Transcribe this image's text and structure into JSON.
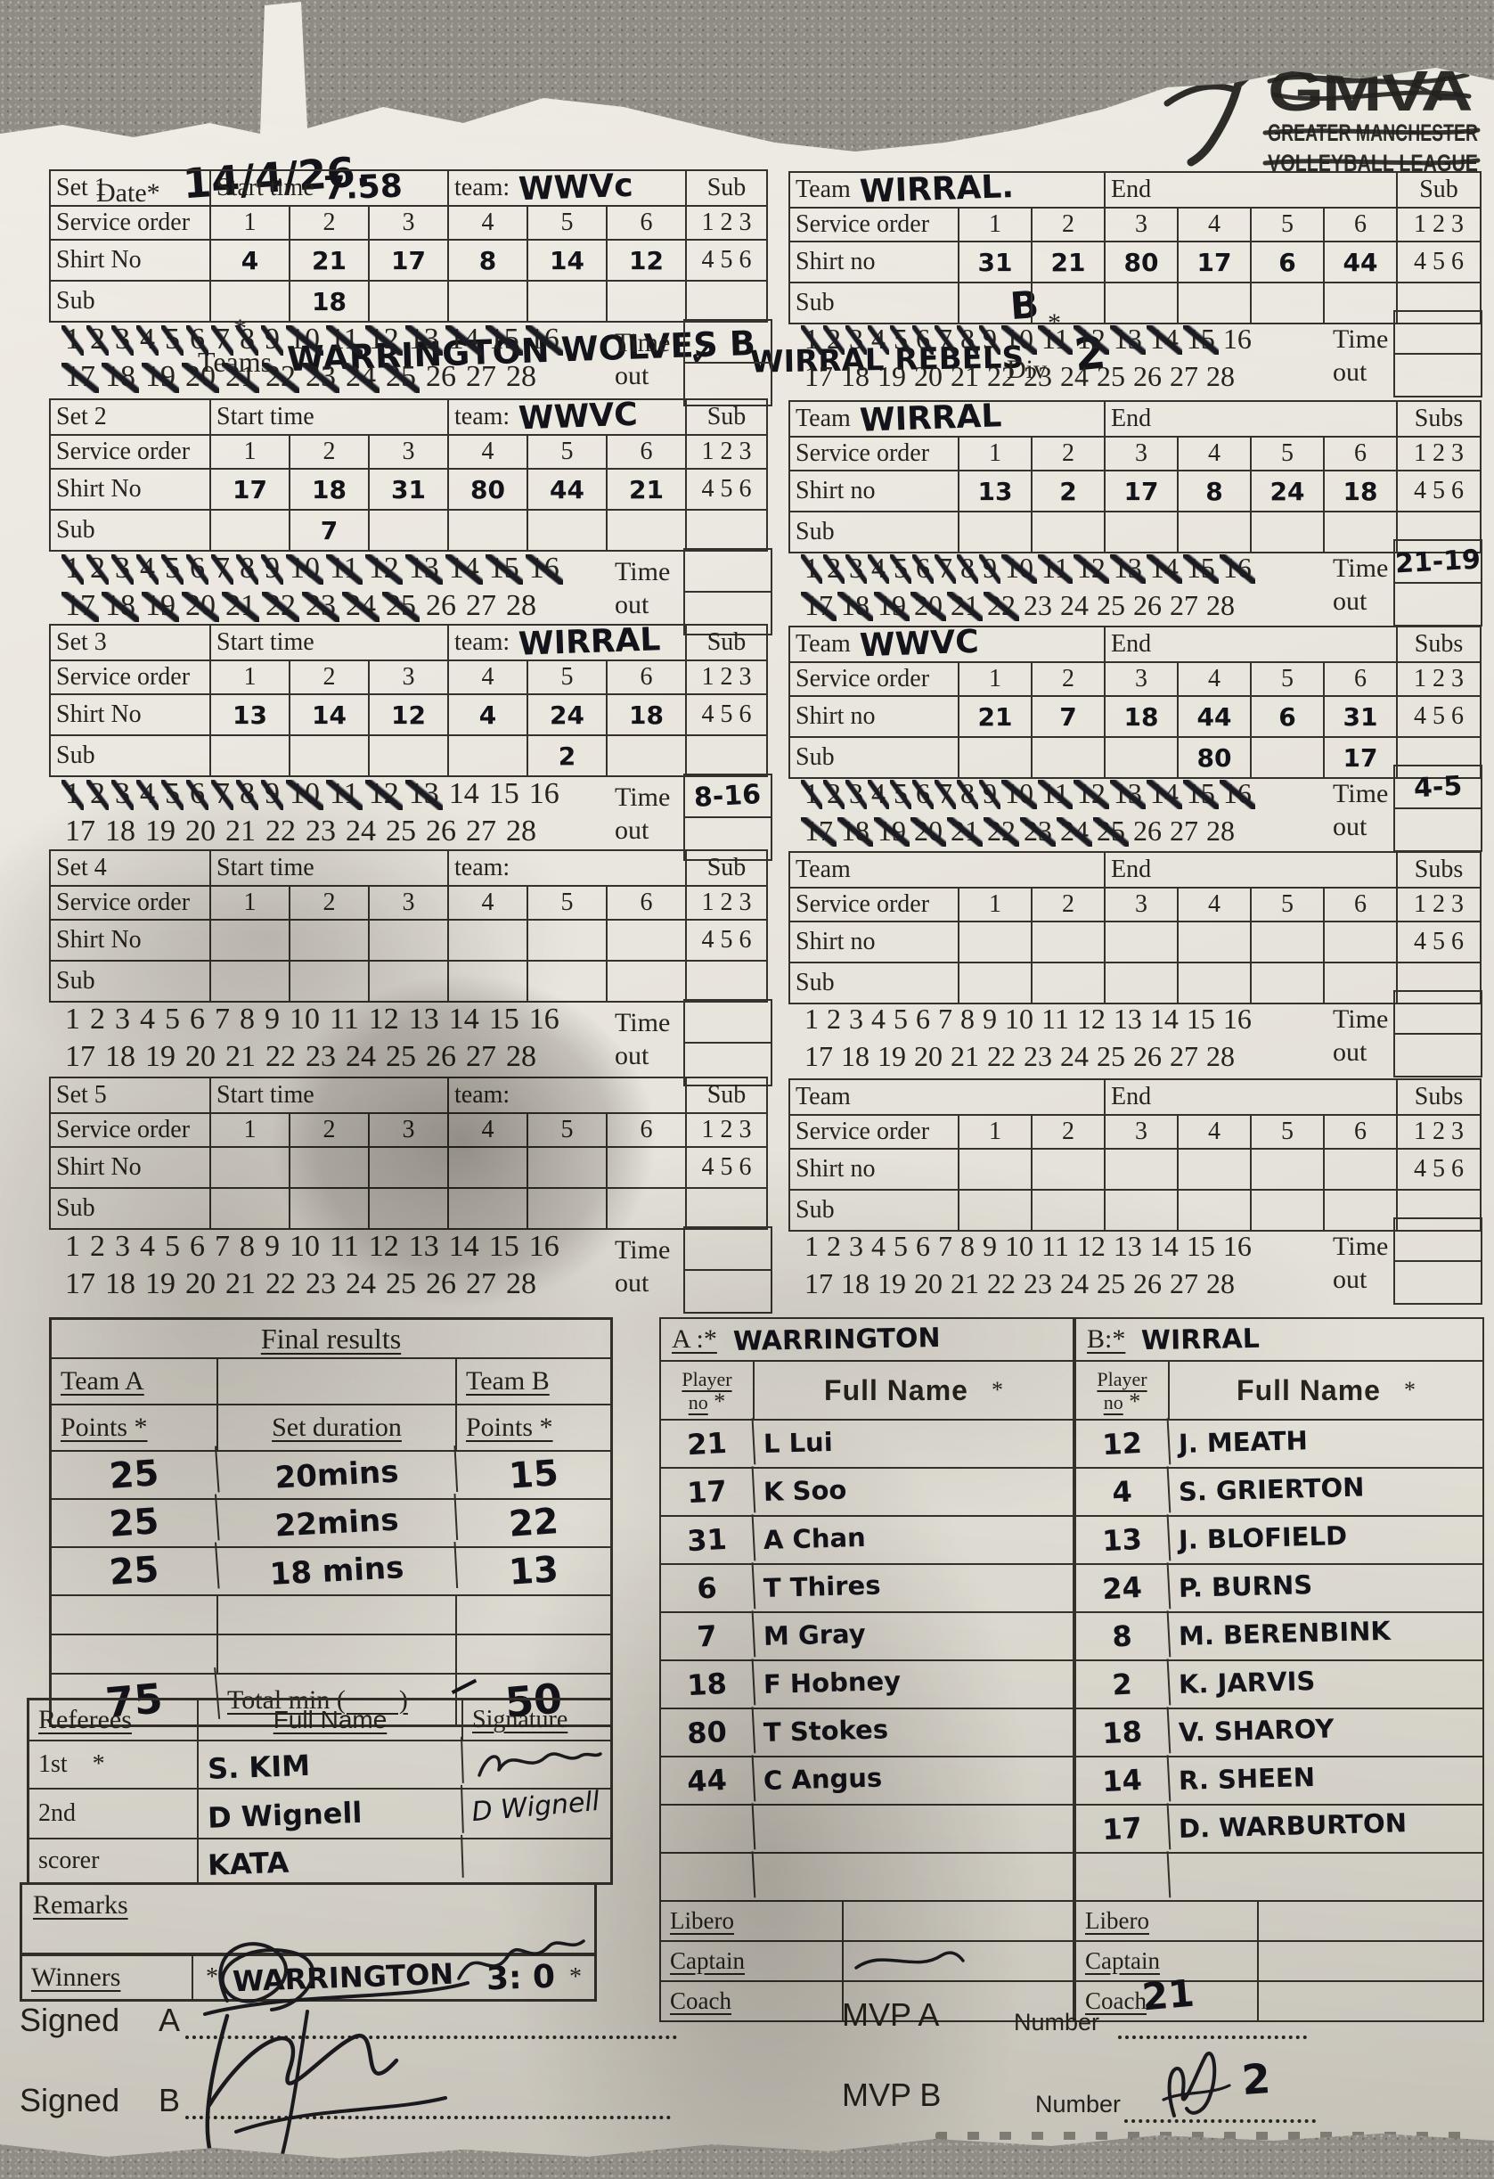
{
  "page": {
    "date_label": "Date*",
    "date_value": "14/4/26.",
    "teams_asterisk": "*",
    "teams_label": "Teams",
    "team_a_hand": "WARRINGTON WOLVES B",
    "tick": "✓",
    "team_b_hand": "WIRRAL REBELS",
    "team_b_sup": "B",
    "team_b_star": "*",
    "div_label": "Div",
    "div_value": "2"
  },
  "logo": {
    "name": "GMVA",
    "line1": "GREATER MANCHESTER",
    "line2": "VOLLEYBALL LEAGUE"
  },
  "labels": {
    "start_time": "Start time",
    "team_lower": "team:",
    "team_upper": "Team",
    "end": "End",
    "service_order": "Service order",
    "shirt_no_left": "Shirt No",
    "shirt_no_right": "Shirt no",
    "sub": "Sub",
    "sub_123": "1 2 3",
    "sub_456": "4 5 6",
    "time": "Time",
    "out": "out",
    "service_numbers": [
      "1",
      "2",
      "3",
      "4",
      "5",
      "6"
    ],
    "tally_count": 28
  },
  "sets": [
    {
      "label": "Set 1",
      "left": {
        "start_time": "7.58",
        "team": "WWVc",
        "shirt": [
          "4",
          "21",
          "17",
          "8",
          "14",
          "12"
        ],
        "sub": [
          "",
          "18",
          "",
          "",
          "",
          ""
        ],
        "crossed": 25,
        "timeout": ""
      },
      "right": {
        "team": "WIRRAL.",
        "sub_header": "Sub",
        "shirt": [
          "31",
          "21",
          "80",
          "17",
          "6",
          "44"
        ],
        "sub": [
          "",
          "",
          "",
          "",
          "",
          ""
        ],
        "crossed": 15,
        "timeout": ""
      }
    },
    {
      "label": "Set 2",
      "left": {
        "start_time": "",
        "team": "WWVC",
        "shirt": [
          "17",
          "18",
          "31",
          "80",
          "44",
          "21"
        ],
        "sub": [
          "",
          "7",
          "",
          "",
          "",
          ""
        ],
        "crossed": 25,
        "timeout": ""
      },
      "right": {
        "team": "WIRRAL",
        "sub_header": "Subs",
        "shirt": [
          "13",
          "2",
          "17",
          "8",
          "24",
          "18"
        ],
        "sub": [
          "",
          "",
          "",
          "",
          "",
          ""
        ],
        "crossed": 22,
        "timeout": "21-19"
      }
    },
    {
      "label": "Set 3",
      "left": {
        "start_time": "",
        "team": "WIRRAL",
        "shirt": [
          "13",
          "14",
          "12",
          "4",
          "24",
          "18"
        ],
        "sub": [
          "",
          "",
          "",
          "",
          "2",
          ""
        ],
        "crossed": 13,
        "timeout": "8-16"
      },
      "right": {
        "team": "WWVC",
        "sub_header": "Subs",
        "shirt": [
          "21",
          "7",
          "18",
          "44",
          "6",
          "31"
        ],
        "sub": [
          "",
          "",
          "",
          "80",
          "",
          "17"
        ],
        "crossed": 25,
        "timeout": "4-5"
      }
    },
    {
      "label": "Set 4",
      "left": {
        "start_time": "",
        "team": "",
        "shirt": [
          "",
          "",
          "",
          "",
          "",
          ""
        ],
        "sub": [
          "",
          "",
          "",
          "",
          "",
          ""
        ],
        "crossed": 0,
        "timeout": ""
      },
      "right": {
        "team": "",
        "sub_header": "Subs",
        "shirt": [
          "",
          "",
          "",
          "",
          "",
          ""
        ],
        "sub": [
          "",
          "",
          "",
          "",
          "",
          ""
        ],
        "crossed": 0,
        "timeout": ""
      }
    },
    {
      "label": "Set 5",
      "left": {
        "start_time": "",
        "team": "",
        "shirt": [
          "",
          "",
          "",
          "",
          "",
          ""
        ],
        "sub": [
          "",
          "",
          "",
          "",
          "",
          ""
        ],
        "crossed": 0,
        "timeout": ""
      },
      "right": {
        "team": "",
        "sub_header": "Subs",
        "shirt": [
          "",
          "",
          "",
          "",
          "",
          ""
        ],
        "sub": [
          "",
          "",
          "",
          "",
          "",
          ""
        ],
        "crossed": 0,
        "timeout": ""
      }
    }
  ],
  "final_results": {
    "title": "Final results",
    "team_a_label": "Team A",
    "team_b_label": "Team B",
    "points_label_a": "Points *",
    "duration_label": "Set duration",
    "points_label_b": "Points *",
    "rows": [
      {
        "a": "25",
        "duration": "20mins",
        "b": "15"
      },
      {
        "a": "25",
        "duration": "22mins",
        "b": "22"
      },
      {
        "a": "25",
        "duration": "18 mins",
        "b": "13"
      }
    ],
    "total_a": "75",
    "total_label": "Total min (        )",
    "total_b": "50"
  },
  "roster_a": {
    "header": "A :*",
    "team": "WARRINGTON",
    "col_no_1": "Player",
    "col_no_2": "no",
    "col_star": "*",
    "col_name": "Full Name",
    "col_name_star": "*",
    "players": [
      {
        "no": "21",
        "name": "L Lui"
      },
      {
        "no": "17",
        "name": "K Soo"
      },
      {
        "no": "31",
        "name": "A Chan"
      },
      {
        "no": "6",
        "name": "T Thires"
      },
      {
        "no": "7",
        "name": "M Gray"
      },
      {
        "no": "18",
        "name": "F Hobney"
      },
      {
        "no": "80",
        "name": "T Stokes"
      },
      {
        "no": "44",
        "name": "C Angus"
      },
      {
        "no": "",
        "name": ""
      },
      {
        "no": "",
        "name": ""
      }
    ],
    "libero_label": "Libero",
    "captain_label": "Captain",
    "coach_label": "Coach",
    "captain_signed": true
  },
  "roster_b": {
    "header": "B:*",
    "team": "WIRRAL",
    "col_no_1": "Player",
    "col_no_2": "no",
    "col_star": "*",
    "col_name": "Full Name",
    "col_name_star": "*",
    "players": [
      {
        "no": "12",
        "name": "J. MEATH"
      },
      {
        "no": "4",
        "name": "S. GRIERTON"
      },
      {
        "no": "13",
        "name": "J. BLOFIELD"
      },
      {
        "no": "24",
        "name": "P. BURNS"
      },
      {
        "no": "8",
        "name": "M. BERENBINK"
      },
      {
        "no": "2",
        "name": "K. JARVIS"
      },
      {
        "no": "18",
        "name": "V. SHAROY"
      },
      {
        "no": "14",
        "name": "R. SHEEN"
      },
      {
        "no": "17",
        "name": "D. WARBURTON"
      },
      {
        "no": "",
        "name": ""
      }
    ],
    "libero_label": "Libero",
    "captain_label": "Captain",
    "coach_label": "Coach",
    "captain_signed": false
  },
  "referees": {
    "title": "Referees",
    "col_name": "Full Name",
    "col_sig": "Signature",
    "rows": [
      {
        "role": "1st    *",
        "name": "S. KIM",
        "signature": ""
      },
      {
        "role": "2nd",
        "name": "D Wignell",
        "signature": "D Wignell"
      },
      {
        "role": "scorer",
        "name": "KATA",
        "signature": ""
      }
    ],
    "remarks_label": "Remarks",
    "winners_label": "Winners",
    "winners_star_left": "*",
    "winners_value": "WARRINGTON",
    "winners_score": "3: 0",
    "winners_star_right": "*"
  },
  "footer": {
    "signed_label": "Signed",
    "a_label": "A",
    "b_label": "B",
    "mvp_a_label": "MVP A",
    "mvp_b_label": "MVP B",
    "number_label": "Number",
    "mvp_a_number": "21",
    "mvp_b_number": "2"
  }
}
